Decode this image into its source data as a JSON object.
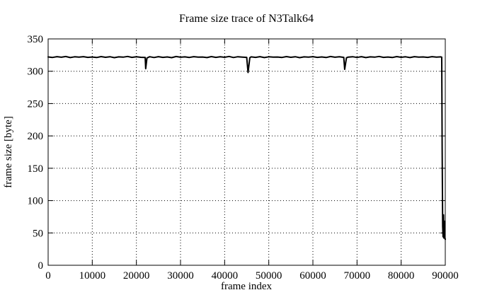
{
  "page": {
    "background": "#ffffff",
    "foreground": "#000000"
  },
  "chart_data": {
    "type": "line",
    "title": "Frame size trace of N3Talk64",
    "xlabel": "frame index",
    "ylabel": "frame size [byte]",
    "xlim": [
      0,
      90000
    ],
    "ylim": [
      0,
      350
    ],
    "xticks": [
      0,
      10000,
      20000,
      30000,
      40000,
      50000,
      60000,
      70000,
      80000,
      90000
    ],
    "yticks": [
      0,
      50,
      100,
      150,
      200,
      250,
      300,
      350
    ],
    "grid": true,
    "grid_style": "dotted",
    "legend_position": "none",
    "line_color": "#000000",
    "background": "#ffffff",
    "series": [
      {
        "name": "frame size",
        "points": [
          [
            0,
            322.1
          ],
          [
            1000,
            321.3
          ],
          [
            2000,
            322.5
          ],
          [
            3000,
            321.7
          ],
          [
            4000,
            322.8
          ],
          [
            5000,
            321.1
          ],
          [
            6000,
            322.3
          ],
          [
            7000,
            321.9
          ],
          [
            8000,
            322.6
          ],
          [
            9000,
            321.4
          ],
          [
            10000,
            322.0
          ],
          [
            11000,
            321.2
          ],
          [
            12000,
            322.7
          ],
          [
            13000,
            321.6
          ],
          [
            14000,
            322.4
          ],
          [
            15000,
            321.0
          ],
          [
            16000,
            322.2
          ],
          [
            17000,
            321.8
          ],
          [
            18000,
            322.9
          ],
          [
            19000,
            321.5
          ],
          [
            20000,
            322.3
          ],
          [
            21000,
            321.6
          ],
          [
            22000,
            321.2
          ],
          [
            22100,
            304.0
          ],
          [
            22400,
            320.5
          ],
          [
            23000,
            322.4
          ],
          [
            24000,
            321.2
          ],
          [
            25000,
            322.6
          ],
          [
            26000,
            321.5
          ],
          [
            27000,
            322.1
          ],
          [
            28000,
            321.0
          ],
          [
            29000,
            322.8
          ],
          [
            30000,
            321.7
          ],
          [
            31000,
            322.2
          ],
          [
            32000,
            321.3
          ],
          [
            33000,
            322.5
          ],
          [
            34000,
            321.8
          ],
          [
            35000,
            322.0
          ],
          [
            36000,
            321.1
          ],
          [
            37000,
            322.7
          ],
          [
            38000,
            321.4
          ],
          [
            39000,
            322.3
          ],
          [
            40000,
            321.6
          ],
          [
            41000,
            322.9
          ],
          [
            42000,
            321.2
          ],
          [
            43000,
            322.4
          ],
          [
            44000,
            321.9
          ],
          [
            45000,
            321.4
          ],
          [
            45300,
            298.0
          ],
          [
            45700,
            320.9
          ],
          [
            46000,
            322.2
          ],
          [
            47000,
            321.5
          ],
          [
            48000,
            322.6
          ],
          [
            49000,
            321.1
          ],
          [
            50000,
            322.3
          ],
          [
            51000,
            321.8
          ],
          [
            52000,
            322.0
          ],
          [
            53000,
            321.3
          ],
          [
            54000,
            322.7
          ],
          [
            55000,
            321.6
          ],
          [
            56000,
            322.4
          ],
          [
            57000,
            321.0
          ],
          [
            58000,
            322.2
          ],
          [
            59000,
            321.9
          ],
          [
            60000,
            322.5
          ],
          [
            61000,
            321.4
          ],
          [
            62000,
            322.1
          ],
          [
            63000,
            321.2
          ],
          [
            64000,
            322.8
          ],
          [
            65000,
            321.7
          ],
          [
            66000,
            322.3
          ],
          [
            67000,
            321.5
          ],
          [
            67200,
            303.0
          ],
          [
            67600,
            320.8
          ],
          [
            68000,
            321.9
          ],
          [
            69000,
            322.4
          ],
          [
            70000,
            321.3
          ],
          [
            71000,
            322.6
          ],
          [
            72000,
            321.1
          ],
          [
            73000,
            322.2
          ],
          [
            74000,
            321.8
          ],
          [
            75000,
            322.9
          ],
          [
            76000,
            321.5
          ],
          [
            77000,
            322.0
          ],
          [
            78000,
            321.2
          ],
          [
            79000,
            322.7
          ],
          [
            80000,
            321.6
          ],
          [
            81000,
            322.3
          ],
          [
            82000,
            321.1
          ],
          [
            83000,
            322.5
          ],
          [
            84000,
            321.8
          ],
          [
            85000,
            322.1
          ],
          [
            86000,
            321.4
          ],
          [
            87000,
            322.6
          ],
          [
            88000,
            321.9
          ],
          [
            89000,
            322.2
          ],
          [
            89200,
            321.8
          ],
          [
            89300,
            180.0
          ],
          [
            89400,
            60.0
          ],
          [
            89500,
            44.0
          ],
          [
            89600,
            78.0
          ],
          [
            89700,
            42.0
          ],
          [
            89800,
            68.0
          ],
          [
            89900,
            43.0
          ],
          [
            90000,
            40.0
          ]
        ]
      }
    ]
  }
}
